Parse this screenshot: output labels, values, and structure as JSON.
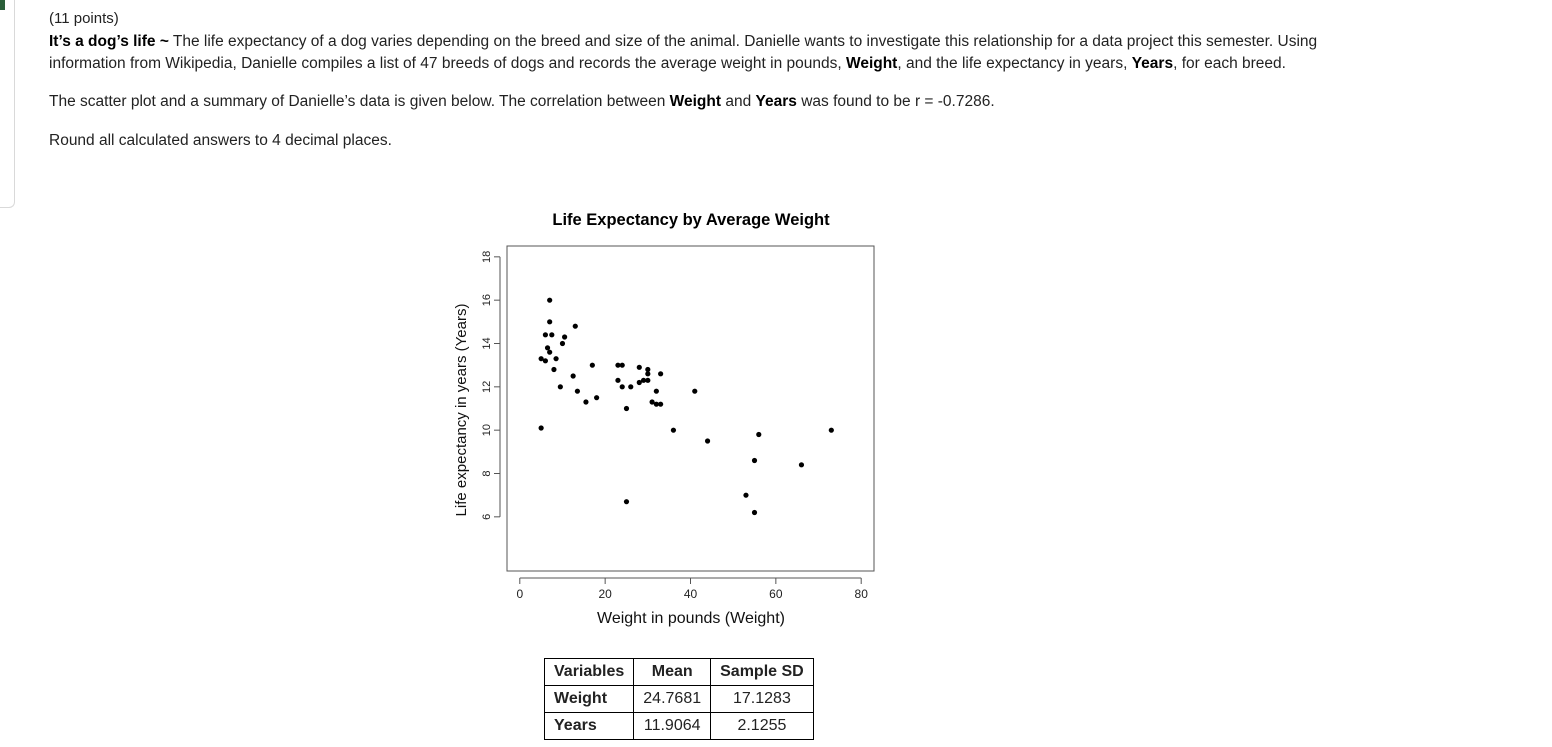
{
  "question": {
    "points": "(11 points)",
    "title": "It’s a dog’s life ~",
    "intro_a": " The life expectancy of a dog varies depending on the breed and size of the animal. Danielle wants to investigate this relationship for a data project this semester. Using information from Wikipedia, Danielle compiles a list of 47 breeds of dogs and records the average weight in pounds, ",
    "weight_var": "Weight",
    "intro_b": ", and the life expectancy in years, ",
    "years_var": "Years",
    "intro_c": ", for each breed.",
    "summary_a": "The scatter plot and a summary of Danielle’s data is given below. The correlation between ",
    "summary_weight": "Weight",
    "summary_and": " and ",
    "summary_years": "Years",
    "summary_b": " was found to be r = -0.7286.",
    "rounding": "Round all calculated answers to 4 decimal places."
  },
  "chart_data": {
    "type": "scatter",
    "title": "Life Expectancy by Average Weight",
    "xlabel": "Weight in pounds (Weight)",
    "ylabel": "Life expectancy in years (Years)",
    "xlim": [
      -3,
      83
    ],
    "ylim": [
      3.5,
      18.5
    ],
    "xticks": [
      "0",
      "20",
      "40",
      "60",
      "80"
    ],
    "yticks": [
      "6",
      "8",
      "10",
      "12",
      "14",
      "16",
      "18"
    ],
    "points": [
      {
        "x": 7,
        "y": 16
      },
      {
        "x": 7,
        "y": 15
      },
      {
        "x": 6,
        "y": 14.4
      },
      {
        "x": 7.5,
        "y": 14.4
      },
      {
        "x": 13,
        "y": 14.8
      },
      {
        "x": 10.5,
        "y": 14.3
      },
      {
        "x": 10,
        "y": 14
      },
      {
        "x": 6.5,
        "y": 13.8
      },
      {
        "x": 7,
        "y": 13.6
      },
      {
        "x": 5,
        "y": 13.3
      },
      {
        "x": 6,
        "y": 13.2
      },
      {
        "x": 8.5,
        "y": 13.3
      },
      {
        "x": 8,
        "y": 12.8
      },
      {
        "x": 17,
        "y": 13
      },
      {
        "x": 23,
        "y": 13
      },
      {
        "x": 24,
        "y": 13
      },
      {
        "x": 28,
        "y": 12.9
      },
      {
        "x": 30,
        "y": 12.8
      },
      {
        "x": 30,
        "y": 12.6
      },
      {
        "x": 33,
        "y": 12.6
      },
      {
        "x": 12.5,
        "y": 12.5
      },
      {
        "x": 23,
        "y": 12.3
      },
      {
        "x": 29,
        "y": 12.3
      },
      {
        "x": 30,
        "y": 12.3
      },
      {
        "x": 28,
        "y": 12.2
      },
      {
        "x": 9.5,
        "y": 12
      },
      {
        "x": 24,
        "y": 12
      },
      {
        "x": 26,
        "y": 12
      },
      {
        "x": 13.5,
        "y": 11.8
      },
      {
        "x": 32,
        "y": 11.8
      },
      {
        "x": 41,
        "y": 11.8
      },
      {
        "x": 18,
        "y": 11.5
      },
      {
        "x": 15.5,
        "y": 11.3
      },
      {
        "x": 31,
        "y": 11.3
      },
      {
        "x": 32,
        "y": 11.2
      },
      {
        "x": 33,
        "y": 11.2
      },
      {
        "x": 25,
        "y": 11
      },
      {
        "x": 5,
        "y": 10.1
      },
      {
        "x": 36,
        "y": 10
      },
      {
        "x": 73,
        "y": 10
      },
      {
        "x": 56,
        "y": 9.8
      },
      {
        "x": 44,
        "y": 9.5
      },
      {
        "x": 55,
        "y": 8.6
      },
      {
        "x": 66,
        "y": 8.4
      },
      {
        "x": 53,
        "y": 7
      },
      {
        "x": 25,
        "y": 6.7
      },
      {
        "x": 55,
        "y": 6.2
      }
    ]
  },
  "summary_table": {
    "headers": [
      "Variables",
      "Mean",
      "Sample SD"
    ],
    "rows": [
      {
        "name": "Weight",
        "mean": "24.7681",
        "sd": "17.1283"
      },
      {
        "name": "Years",
        "mean": "11.9064",
        "sd": "2.1255"
      }
    ]
  }
}
